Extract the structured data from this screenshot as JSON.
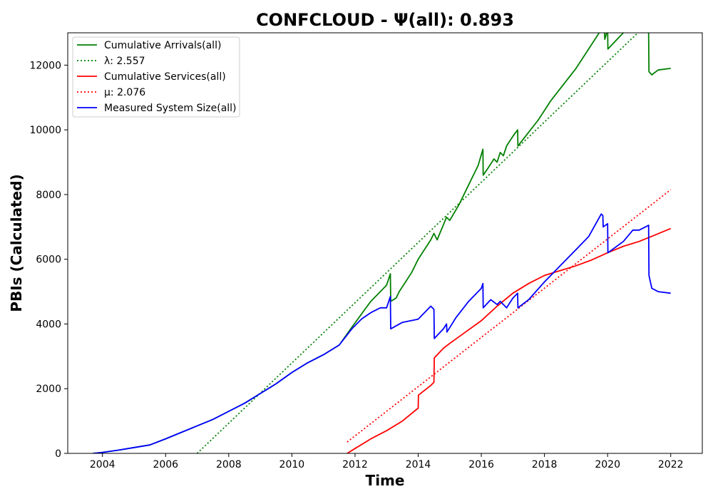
{
  "chart_data": {
    "type": "line",
    "title": "CONFCLOUD -  Ψ(all): 0.893",
    "xlabel": "Time",
    "ylabel": "PBIs (Calculated)",
    "xlim": [
      2002.9,
      2023.0
    ],
    "ylim": [
      0,
      13000
    ],
    "x_ticks": [
      2004,
      2006,
      2008,
      2010,
      2012,
      2014,
      2016,
      2018,
      2020,
      2022
    ],
    "y_ticks": [
      0,
      2000,
      4000,
      6000,
      8000,
      10000,
      12000
    ],
    "grid": false,
    "legend_position": "upper left",
    "series": [
      {
        "name": "Cumulative Arrivals(all)",
        "color": "#008000",
        "style": "solid",
        "x": [
          2003.7,
          2004.0,
          2004.5,
          2005.0,
          2005.5,
          2006.0,
          2006.5,
          2007.0,
          2007.5,
          2008.0,
          2008.5,
          2009.0,
          2009.5,
          2010.0,
          2010.5,
          2011.0,
          2011.5,
          2011.9,
          2012.2,
          2012.5,
          2012.8,
          2013.0,
          2013.12,
          2013.13,
          2013.3,
          2013.4,
          2013.6,
          2013.8,
          2014.0,
          2014.2,
          2014.4,
          2014.5,
          2014.6,
          2014.9,
          2015.0,
          2015.3,
          2015.6,
          2015.9,
          2016.05,
          2016.06,
          2016.2,
          2016.4,
          2016.5,
          2016.6,
          2016.7,
          2016.8,
          2017.0,
          2017.15,
          2017.16,
          2017.4,
          2017.8,
          2018.2,
          2018.6,
          2019.0,
          2019.4,
          2019.8,
          2019.9,
          2019.91,
          2020.0,
          2020.01,
          2020.4,
          2020.8,
          2021.2,
          2021.3,
          2021.31,
          2021.4,
          2021.6,
          2022.0
        ],
        "y": [
          0,
          30,
          100,
          180,
          260,
          450,
          650,
          850,
          1050,
          1300,
          1550,
          1850,
          2150,
          2500,
          2800,
          3050,
          3350,
          3900,
          4300,
          4700,
          5000,
          5200,
          5550,
          4700,
          4800,
          5000,
          5300,
          5600,
          6000,
          6300,
          6600,
          6800,
          6600,
          7300,
          7200,
          7700,
          8300,
          8900,
          9400,
          8600,
          8800,
          9100,
          9000,
          9300,
          9200,
          9500,
          9800,
          10000,
          9500,
          9800,
          10300,
          10900,
          11400,
          11900,
          12500,
          13100,
          13300,
          12800,
          13100,
          12500,
          12900,
          13300,
          13200,
          13000,
          11800,
          11700,
          11850,
          11900
        ]
      },
      {
        "name": "λ: 2.557",
        "color": "#008000",
        "style": "dotted",
        "x": [
          2007.0,
          2020.96
        ],
        "y": [
          0,
          13000
        ]
      },
      {
        "name": "Cumulative Services(all)",
        "color": "#ff0000",
        "style": "solid",
        "x": [
          2011.75,
          2012.0,
          2012.5,
          2013.0,
          2013.5,
          2014.0,
          2014.01,
          2014.4,
          2014.5,
          2014.51,
          2014.8,
          2015.0,
          2015.5,
          2016.0,
          2016.5,
          2017.0,
          2017.5,
          2018.0,
          2018.5,
          2019.0,
          2019.5,
          2020.0,
          2020.5,
          2021.0,
          2021.5,
          2022.0
        ],
        "y": [
          0,
          150,
          450,
          700,
          1000,
          1400,
          1800,
          2100,
          2200,
          2950,
          3250,
          3400,
          3750,
          4100,
          4550,
          4950,
          5250,
          5500,
          5650,
          5800,
          5980,
          6200,
          6400,
          6550,
          6750,
          6950
        ]
      },
      {
        "name": "μ: 2.076",
        "color": "#ff0000",
        "style": "dotted",
        "x": [
          2011.75,
          2022.0
        ],
        "y": [
          350,
          8150
        ]
      },
      {
        "name": "Measured System Size(all)",
        "color": "#0000ff",
        "style": "solid",
        "x": [
          2003.7,
          2004.0,
          2004.5,
          2005.0,
          2005.5,
          2006.0,
          2006.5,
          2007.0,
          2007.5,
          2008.0,
          2008.5,
          2009.0,
          2009.5,
          2010.0,
          2010.5,
          2011.0,
          2011.5,
          2011.9,
          2012.2,
          2012.5,
          2012.8,
          2013.0,
          2013.12,
          2013.13,
          2013.5,
          2014.0,
          2014.4,
          2014.5,
          2014.51,
          2014.8,
          2014.9,
          2014.91,
          2015.2,
          2015.6,
          2016.0,
          2016.05,
          2016.06,
          2016.3,
          2016.5,
          2016.6,
          2016.8,
          2017.0,
          2017.15,
          2017.16,
          2017.5,
          2018.0,
          2018.5,
          2019.0,
          2019.4,
          2019.8,
          2019.85,
          2019.86,
          2020.0,
          2020.01,
          2020.5,
          2020.8,
          2021.0,
          2021.2,
          2021.3,
          2021.31,
          2021.4,
          2021.6,
          2022.0
        ],
        "y": [
          0,
          30,
          100,
          180,
          260,
          450,
          650,
          850,
          1050,
          1300,
          1550,
          1850,
          2150,
          2500,
          2800,
          3050,
          3350,
          3850,
          4150,
          4350,
          4500,
          4500,
          4850,
          3850,
          4050,
          4150,
          4550,
          4450,
          3550,
          3850,
          4000,
          3750,
          4200,
          4700,
          5100,
          5250,
          4500,
          4750,
          4600,
          4700,
          4500,
          4800,
          4950,
          4500,
          4750,
          5300,
          5800,
          6300,
          6700,
          7400,
          7350,
          7000,
          7100,
          6200,
          6550,
          6900,
          6900,
          7000,
          7050,
          5500,
          5100,
          5000,
          4950
        ]
      }
    ],
    "legend": [
      {
        "label": "Cumulative Arrivals(all)",
        "color": "#008000",
        "style": "solid"
      },
      {
        "label": "λ: 2.557",
        "color": "#008000",
        "style": "dotted"
      },
      {
        "label": "Cumulative Services(all)",
        "color": "#ff0000",
        "style": "solid"
      },
      {
        "label": "μ: 2.076",
        "color": "#ff0000",
        "style": "dotted"
      },
      {
        "label": "Measured System Size(all)",
        "color": "#0000ff",
        "style": "solid"
      }
    ]
  }
}
